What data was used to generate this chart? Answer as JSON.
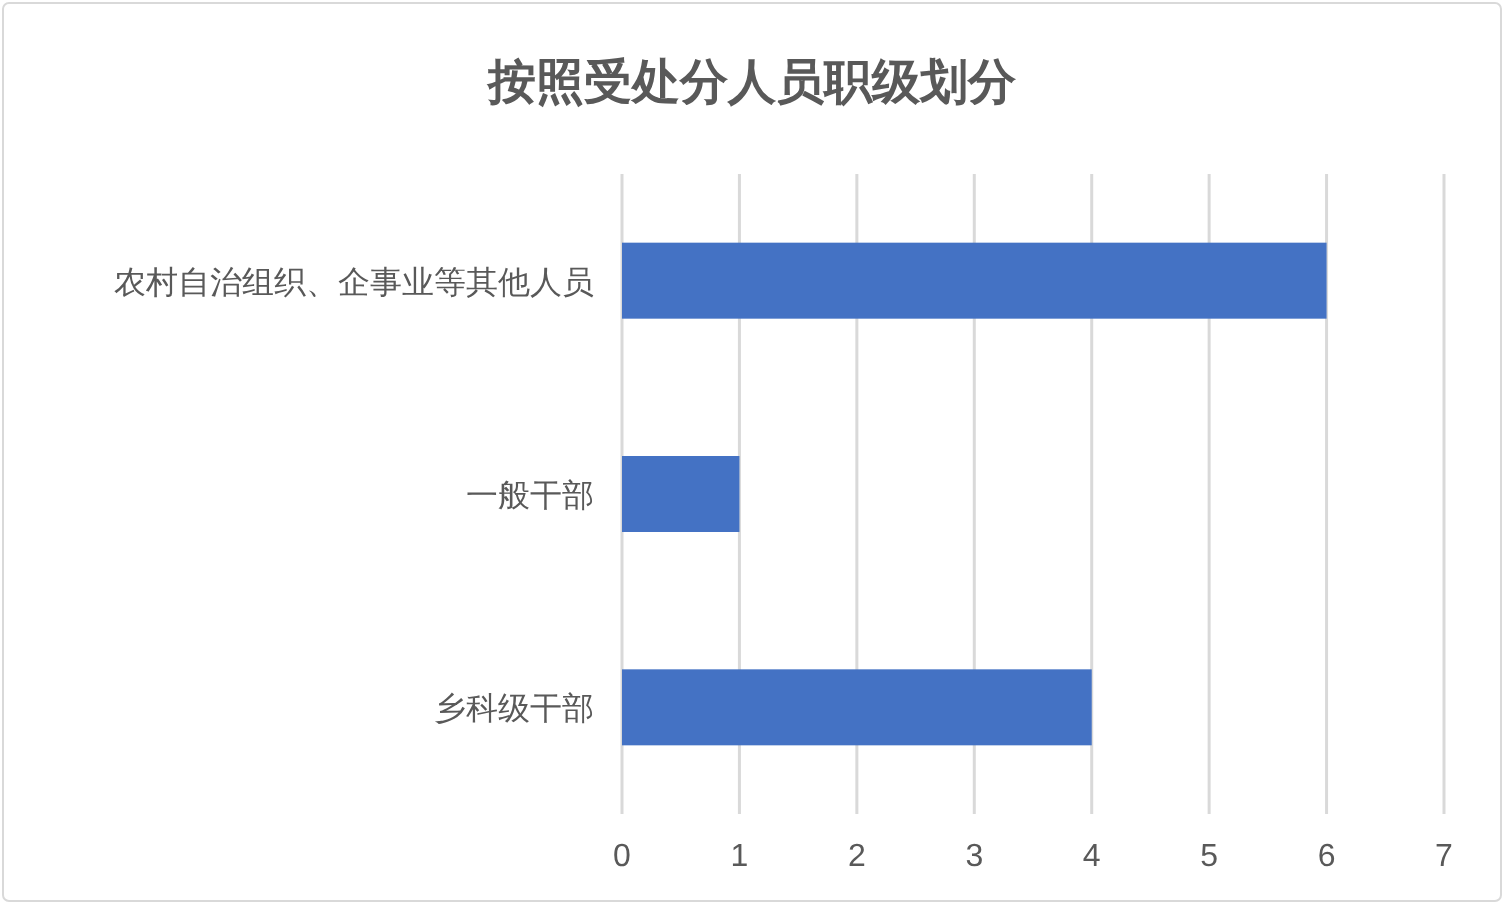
{
  "chart_data": {
    "type": "bar",
    "title": "按照受处分人员职级划分",
    "orientation": "horizontal",
    "categories": [
      "农村自治组织、企事业等其他人员",
      "一般干部",
      "乡科级干部"
    ],
    "values": [
      6,
      1,
      4
    ],
    "color": "#4472c4",
    "xlim": [
      0,
      7
    ],
    "xticks": [
      0,
      1,
      2,
      3,
      4,
      5,
      6,
      7
    ],
    "grid": "x"
  }
}
